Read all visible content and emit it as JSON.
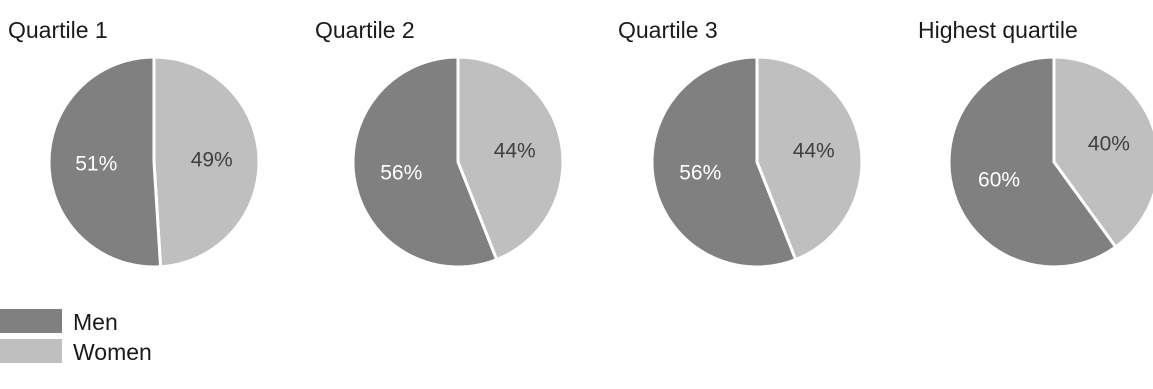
{
  "chart_data": {
    "type": "pie",
    "pies": [
      {
        "title": "Quartile 1",
        "values": [
          51,
          49
        ],
        "labels": [
          "51%",
          "49%"
        ]
      },
      {
        "title": "Quartile 2",
        "values": [
          56,
          44
        ],
        "labels": [
          "56%",
          "44%"
        ]
      },
      {
        "title": "Quartile 3",
        "values": [
          56,
          44
        ],
        "labels": [
          "56%",
          "44%"
        ]
      },
      {
        "title": "Highest quartile",
        "values": [
          60,
          40
        ],
        "labels": [
          "60%",
          "40%"
        ]
      }
    ],
    "series": [
      {
        "name": "Men",
        "color": "#808080",
        "label_color": "#ffffff"
      },
      {
        "name": "Women",
        "color": "#bfbfbf",
        "label_color": "#404040"
      }
    ],
    "legend": {
      "position": "bottom-left"
    }
  }
}
